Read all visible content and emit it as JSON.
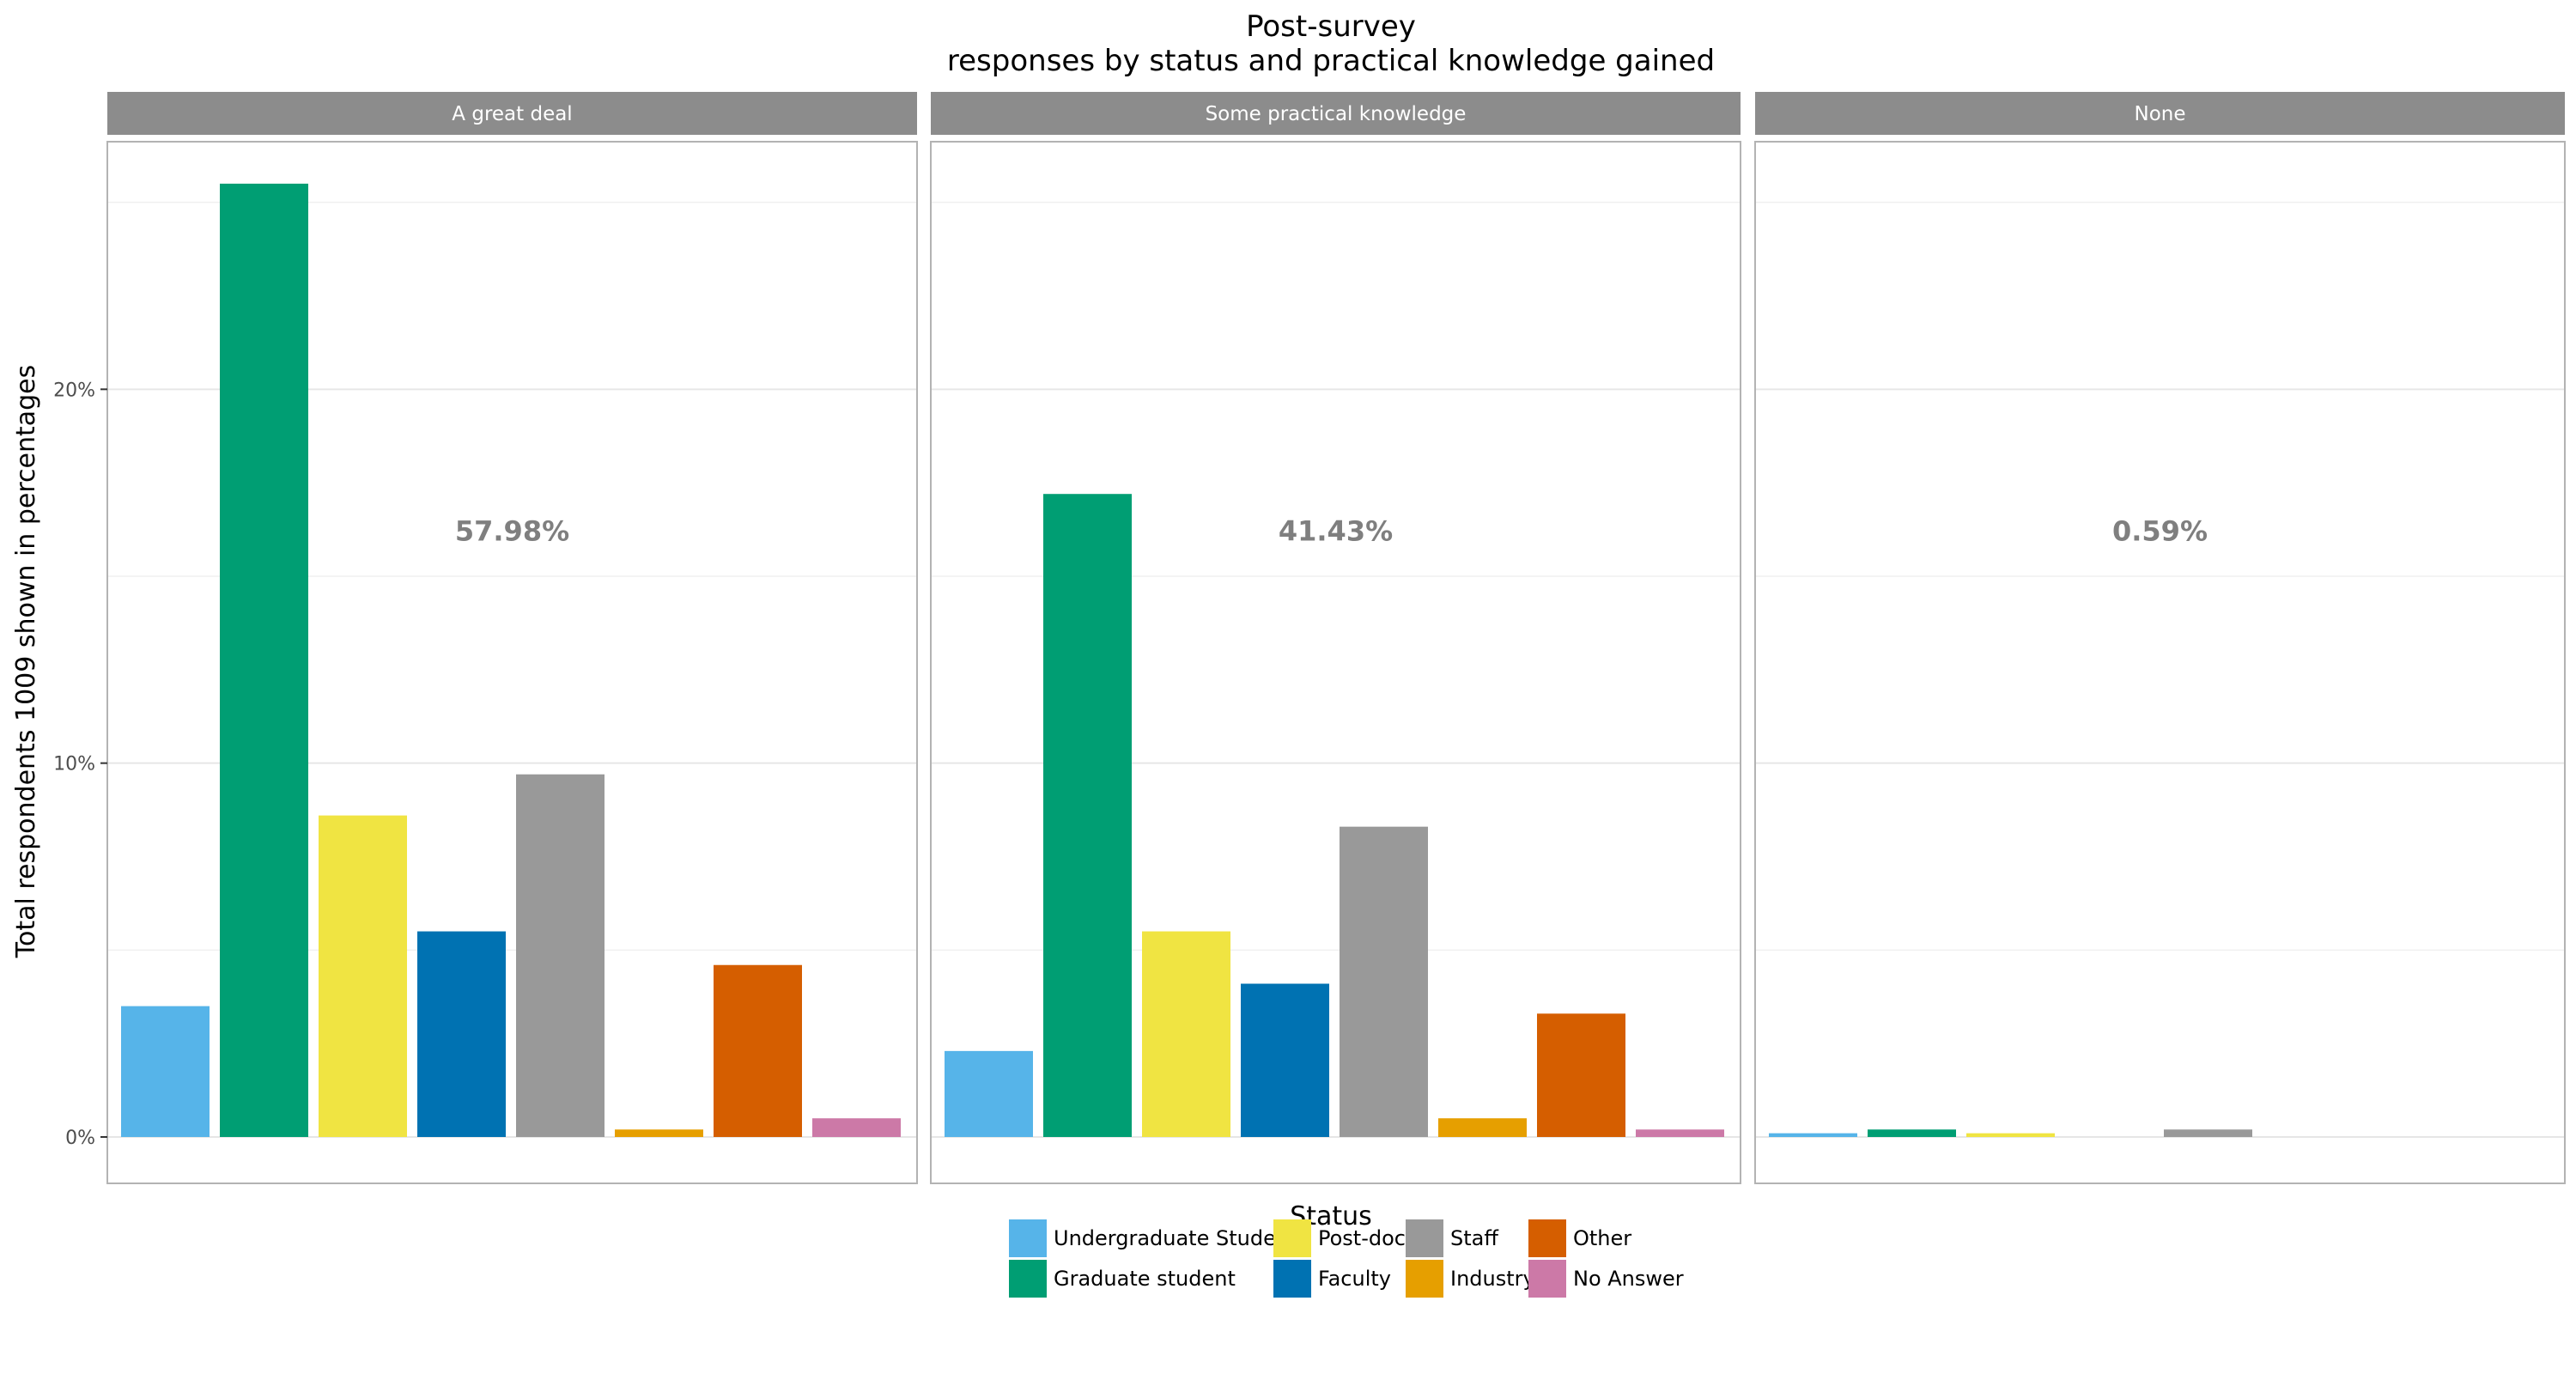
{
  "chart_data": {
    "type": "bar",
    "title": [
      "Post-survey",
      "responses by status and practical knowledge gained"
    ],
    "xlabel": "Status",
    "ylabel": "Total respondents 1009 shown in percentages",
    "ylim": [
      0,
      27
    ],
    "yticks": [
      0,
      10,
      20
    ],
    "ytick_labels": [
      "0%",
      "10%",
      "20%"
    ],
    "grid": true,
    "legend_position": "bottom",
    "categories": [
      "Undergraduate Student",
      "Graduate student",
      "Post-doc",
      "Faculty",
      "Staff",
      "Industry",
      "Other",
      "No Answer"
    ],
    "colors": [
      "#56B4E9",
      "#009E73",
      "#F0E442",
      "#0072B2",
      "#999999",
      "#E69F00",
      "#D55E00",
      "#CC79A7"
    ],
    "legend_order": [
      0,
      2,
      4,
      6,
      1,
      3,
      5,
      7
    ],
    "facets": [
      {
        "label": "A great deal",
        "total_label": "57.98%",
        "values": [
          3.5,
          25.5,
          8.6,
          5.5,
          9.7,
          0.2,
          4.6,
          0.5
        ]
      },
      {
        "label": "Some practical knowledge",
        "total_label": "41.43%",
        "values": [
          2.3,
          17.2,
          5.5,
          4.1,
          8.3,
          0.5,
          3.3,
          0.2
        ]
      },
      {
        "label": "None",
        "total_label": "0.59%",
        "values": [
          0.1,
          0.2,
          0.1,
          0,
          0.2,
          0,
          0,
          0
        ]
      }
    ]
  }
}
